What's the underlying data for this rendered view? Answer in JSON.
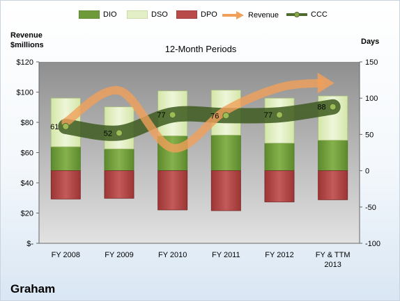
{
  "chart_data": {
    "type": "bar",
    "title": "12-Month Periods",
    "company": "Graham",
    "left_axis": {
      "title_line1": "Revenue",
      "title_line2": "$millions",
      "ticks": [
        "$-",
        "$20",
        "$40",
        "$60",
        "$80",
        "$100",
        "$120"
      ],
      "ylim": [
        0,
        120
      ]
    },
    "right_axis": {
      "title": "Days",
      "ticks": [
        "-100",
        "-50",
        "0",
        "50",
        "100",
        "150"
      ],
      "ylim": [
        -100,
        150
      ]
    },
    "categories": [
      "FY 2008",
      "FY 2009",
      "FY 2010",
      "FY 2011",
      "FY 2012",
      "FY & TTM"
    ],
    "category_sublabels": [
      "",
      "",
      "",
      "",
      "",
      "2013"
    ],
    "series": [
      {
        "name": "DIO",
        "kind": "stacked-bar",
        "axis": "right",
        "color": "#6f9a3a",
        "values": [
          33,
          30,
          48,
          49,
          38,
          42
        ]
      },
      {
        "name": "DSO",
        "kind": "stacked-bar",
        "axis": "right",
        "color": "#e3efc6",
        "values": [
          67,
          58,
          62,
          62,
          62,
          61
        ]
      },
      {
        "name": "DPO",
        "kind": "negative-bar",
        "axis": "right",
        "color": "#b94a4a",
        "values": [
          39,
          38,
          54,
          55,
          43,
          40
        ]
      },
      {
        "name": "Revenue",
        "kind": "arrow-line",
        "axis": "left",
        "color": "#f0a05a",
        "values": [
          80,
          101,
          63,
          88,
          103,
          106
        ]
      },
      {
        "name": "CCC",
        "kind": "line",
        "axis": "right",
        "color": "#4f6b2d",
        "values": [
          61,
          52,
          77,
          76,
          77,
          88
        ]
      }
    ],
    "ccc_labels": [
      "61",
      "52",
      "77",
      "76",
      "77",
      "88"
    ],
    "legend_position": "top",
    "grid": false
  }
}
